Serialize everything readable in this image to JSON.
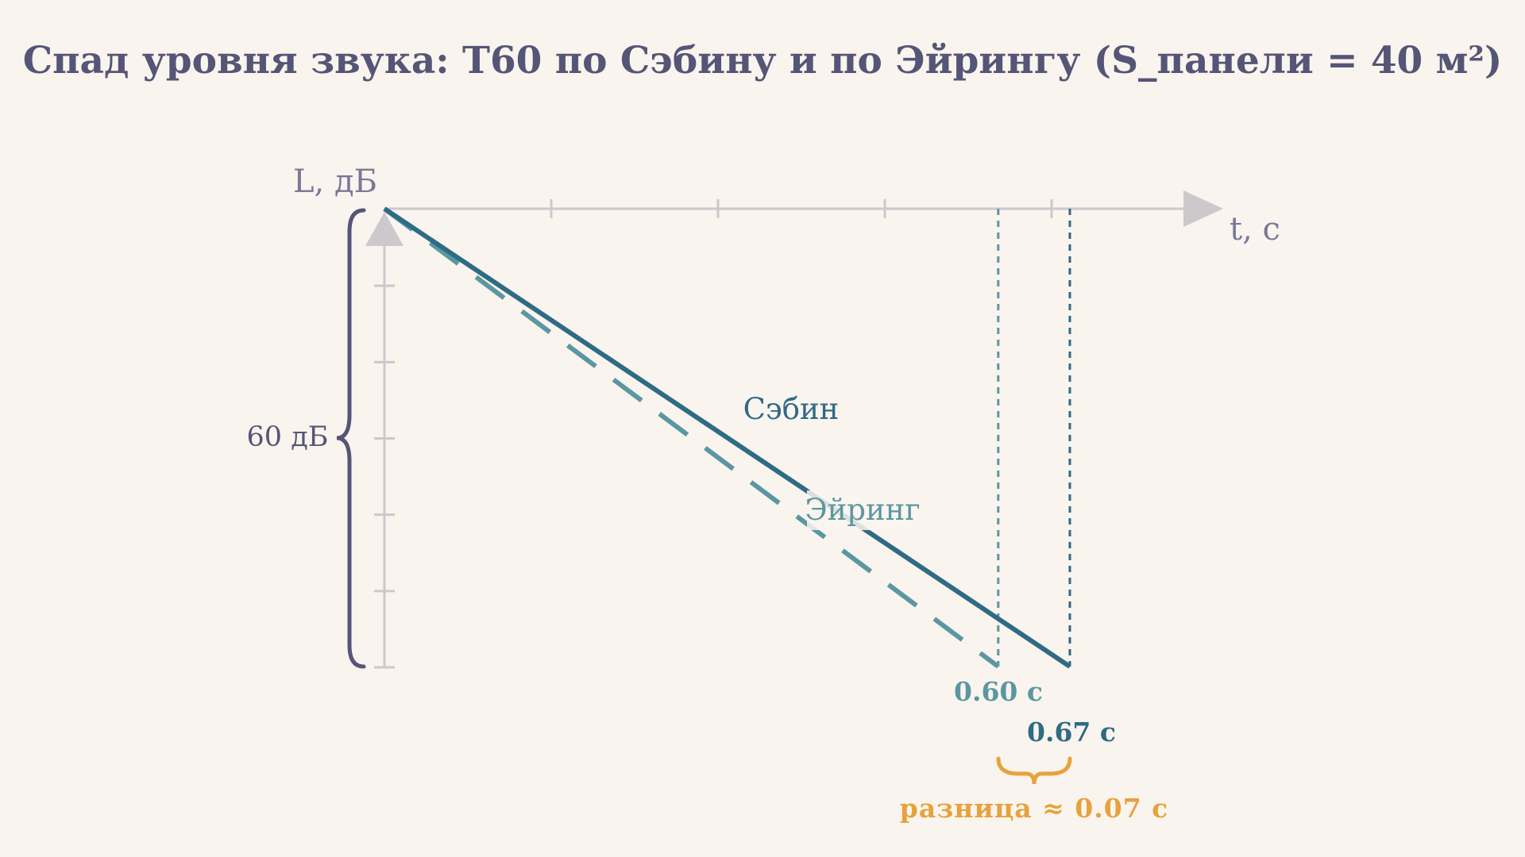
{
  "title": "Спад уровня звука: T60 по Сэбину и по Эйрингу (S_панели = 40 м²)",
  "y_axis_label": "L, дБ",
  "x_axis_label": "t, с",
  "range_label": "60 дБ",
  "series": [
    {
      "name": "Сэбин",
      "t60": 0.67,
      "value_label": "0.67 с",
      "style": "solid",
      "color": "#2E6B85"
    },
    {
      "name": "Эйринг",
      "t60": 0.6,
      "value_label": "0.60 с",
      "style": "dashed",
      "color": "#5B97A2"
    }
  ],
  "difference_label": "разница ≈  0.07 с",
  "colors": {
    "background": "#FAF4EE",
    "title": "#555577",
    "axis": "#CCC8CC",
    "axis_label": "#7A7898",
    "brace": "#555577",
    "accent": "#E6A23C"
  },
  "chart_data": {
    "type": "line",
    "x_unit": "с",
    "y_unit": "дБ",
    "level_drop_db": 60,
    "series": [
      {
        "name": "Сэбин",
        "x": [
          0,
          0.67
        ],
        "y": [
          0,
          -60
        ]
      },
      {
        "name": "Эйринг",
        "x": [
          0,
          0.6
        ],
        "y": [
          0,
          -60
        ]
      }
    ],
    "annotations": [
      "0.60 с",
      "0.67 с",
      "разница ≈  0.07 с",
      "60 дБ"
    ]
  }
}
